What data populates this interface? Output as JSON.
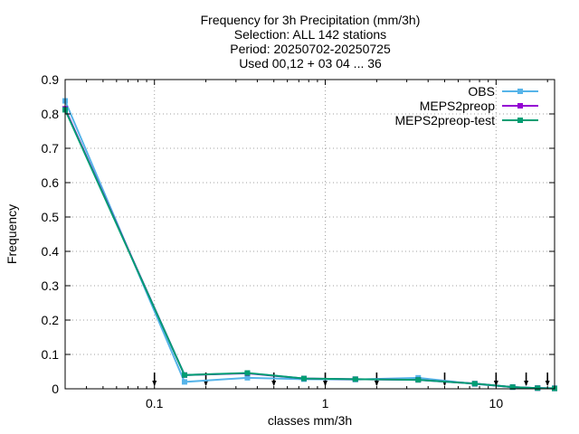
{
  "chart_data": {
    "type": "line",
    "title_lines": [
      "Frequency  for 3h Precipitation (mm/3h)",
      "Selection: ALL    142 stations",
      "Period: 20250702-20250725",
      "Used 00,12 + 03 04 ... 36"
    ],
    "xlabel": "classes mm/3h",
    "ylabel": "Frequency",
    "xscale": "log",
    "xlim": [
      0.03,
      22
    ],
    "ylim": [
      0,
      0.9
    ],
    "xticks": [
      0.1,
      1,
      10
    ],
    "xtick_labels": [
      "0.1",
      "1",
      "10"
    ],
    "yticks": [
      0,
      0.1,
      0.2,
      0.3,
      0.4,
      0.5,
      0.6,
      0.7,
      0.8,
      0.9
    ],
    "ytick_labels": [
      "0",
      "0.1",
      "0.2",
      "0.3",
      "0.4",
      "0.5",
      "0.6",
      "0.7",
      "0.8",
      "0.9"
    ],
    "grid": true,
    "legend_position": "top-right",
    "class_limits": [
      0.1,
      0.2,
      0.5,
      1,
      2,
      5,
      10,
      15,
      20
    ],
    "x": [
      0.03,
      0.15,
      0.35,
      0.75,
      1.5,
      3.5,
      7.5,
      12.5,
      17.5,
      22
    ],
    "series": [
      {
        "name": "OBS",
        "color": "#56b4e9",
        "values": [
          0.838,
          0.02,
          0.032,
          0.028,
          0.027,
          0.032,
          0.014,
          0.005,
          0.002,
          0.002
        ]
      },
      {
        "name": "MEPS2preop",
        "color": "#9400d3",
        "values": [
          0.815,
          0.04,
          0.045,
          0.03,
          0.028,
          0.026,
          0.015,
          0.005,
          0.002,
          0.001
        ]
      },
      {
        "name": "MEPS2preop-test",
        "color": "#009e73",
        "values": [
          0.812,
          0.04,
          0.046,
          0.03,
          0.028,
          0.026,
          0.015,
          0.005,
          0.002,
          0.001
        ]
      }
    ]
  }
}
